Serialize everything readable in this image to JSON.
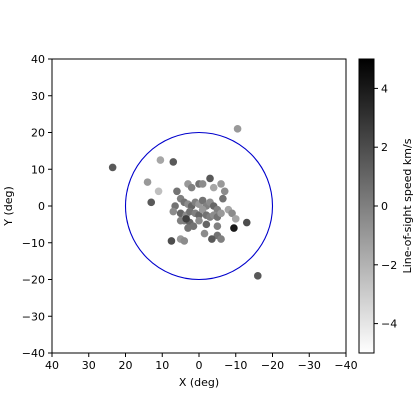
{
  "chart_data": {
    "type": "scatter",
    "xlabel": "X (deg)",
    "ylabel": "Y (deg)",
    "xlim": [
      40,
      -40
    ],
    "ylim": [
      -40,
      40
    ],
    "x_ticks": [
      40,
      30,
      20,
      10,
      0,
      -10,
      -20,
      -30,
      -40
    ],
    "y_ticks": [
      -40,
      -30,
      -20,
      -10,
      0,
      10,
      20,
      30,
      40
    ],
    "grid": false,
    "circle": {
      "center": [
        0,
        0
      ],
      "radius": 20,
      "color": "#0000cc"
    },
    "colorbar": {
      "label": "Line-of-sight speed km/s",
      "range": [
        -5,
        5
      ],
      "ticks": [
        -4,
        -2,
        0,
        2,
        4
      ],
      "tick_labels": [
        "−4",
        "−2",
        "0",
        "2",
        "4"
      ],
      "colormap": "gray_r"
    },
    "points": [
      {
        "x": 23.5,
        "y": 10.5,
        "v": 1.5
      },
      {
        "x": 10.5,
        "y": 12.5,
        "v": -1.5
      },
      {
        "x": 7,
        "y": 12,
        "v": 1.5
      },
      {
        "x": 14,
        "y": 6.5,
        "v": -1
      },
      {
        "x": 11,
        "y": 4,
        "v": -2.5
      },
      {
        "x": 13,
        "y": 1,
        "v": 1.5
      },
      {
        "x": 6,
        "y": 4,
        "v": 0.5
      },
      {
        "x": 3,
        "y": 6,
        "v": -1
      },
      {
        "x": 2,
        "y": 5,
        "v": 0
      },
      {
        "x": 0,
        "y": 6,
        "v": 0.5
      },
      {
        "x": -1,
        "y": 6,
        "v": -0.5
      },
      {
        "x": -3,
        "y": 7.5,
        "v": 1.5
      },
      {
        "x": -4,
        "y": 5,
        "v": -1.5
      },
      {
        "x": -6,
        "y": 6,
        "v": -1
      },
      {
        "x": -7,
        "y": 4,
        "v": -0.5
      },
      {
        "x": -6.5,
        "y": 2,
        "v": 0.5
      },
      {
        "x": 5,
        "y": 2,
        "v": 0
      },
      {
        "x": 4,
        "y": 1,
        "v": 0.5
      },
      {
        "x": 3,
        "y": 0.5,
        "v": -0.5
      },
      {
        "x": 2,
        "y": 0,
        "v": 1
      },
      {
        "x": 1,
        "y": 1,
        "v": 0
      },
      {
        "x": 0,
        "y": 0.5,
        "v": -1
      },
      {
        "x": -1,
        "y": 1.5,
        "v": 0.5
      },
      {
        "x": -2,
        "y": 0,
        "v": 0
      },
      {
        "x": -3,
        "y": 1,
        "v": -0.5
      },
      {
        "x": -4,
        "y": 0,
        "v": 1
      },
      {
        "x": -5,
        "y": -1,
        "v": 0
      },
      {
        "x": 6.5,
        "y": 0,
        "v": 0.5
      },
      {
        "x": 7,
        "y": -1.5,
        "v": -0.5
      },
      {
        "x": 5,
        "y": -2,
        "v": 1
      },
      {
        "x": 3.5,
        "y": -2.5,
        "v": -0.5
      },
      {
        "x": 2.5,
        "y": -1.5,
        "v": 0.5
      },
      {
        "x": 1,
        "y": -2,
        "v": 0
      },
      {
        "x": 0,
        "y": -2.5,
        "v": 1
      },
      {
        "x": -1,
        "y": -1,
        "v": -1
      },
      {
        "x": -2,
        "y": -2.5,
        "v": 0.5
      },
      {
        "x": -3,
        "y": -3,
        "v": 0
      },
      {
        "x": -4,
        "y": -2.5,
        "v": -0.5
      },
      {
        "x": -5,
        "y": -3,
        "v": 0.5
      },
      {
        "x": -6,
        "y": -2,
        "v": -1
      },
      {
        "x": -8,
        "y": -1,
        "v": -1.5
      },
      {
        "x": -9,
        "y": -2,
        "v": -0.5
      },
      {
        "x": -10,
        "y": -3.5,
        "v": -1.5
      },
      {
        "x": 4,
        "y": -4,
        "v": 0
      },
      {
        "x": 2.5,
        "y": -4.5,
        "v": 1
      },
      {
        "x": 1.5,
        "y": -5.5,
        "v": 0.5
      },
      {
        "x": 0,
        "y": -4,
        "v": -0.5
      },
      {
        "x": -2,
        "y": -5,
        "v": 1
      },
      {
        "x": -5,
        "y": -5.5,
        "v": 0
      },
      {
        "x": -1.5,
        "y": -7.5,
        "v": -0.5
      },
      {
        "x": 3,
        "y": -6,
        "v": 0.5
      },
      {
        "x": 5,
        "y": -4,
        "v": 0
      },
      {
        "x": 3.5,
        "y": -3.5,
        "v": 2.5
      },
      {
        "x": -5,
        "y": -8,
        "v": 0.5
      },
      {
        "x": -3.5,
        "y": -9,
        "v": 1.5
      },
      {
        "x": -6,
        "y": -9,
        "v": 0
      },
      {
        "x": 5,
        "y": -9,
        "v": -1
      },
      {
        "x": 4,
        "y": -9.5,
        "v": -0.5
      },
      {
        "x": 7.5,
        "y": -9.5,
        "v": 2
      },
      {
        "x": -9.5,
        "y": -6,
        "v": 4
      },
      {
        "x": -13,
        "y": -4.5,
        "v": 2
      },
      {
        "x": -16,
        "y": -19,
        "v": 1.5
      },
      {
        "x": -10.5,
        "y": 21,
        "v": -1
      }
    ]
  }
}
